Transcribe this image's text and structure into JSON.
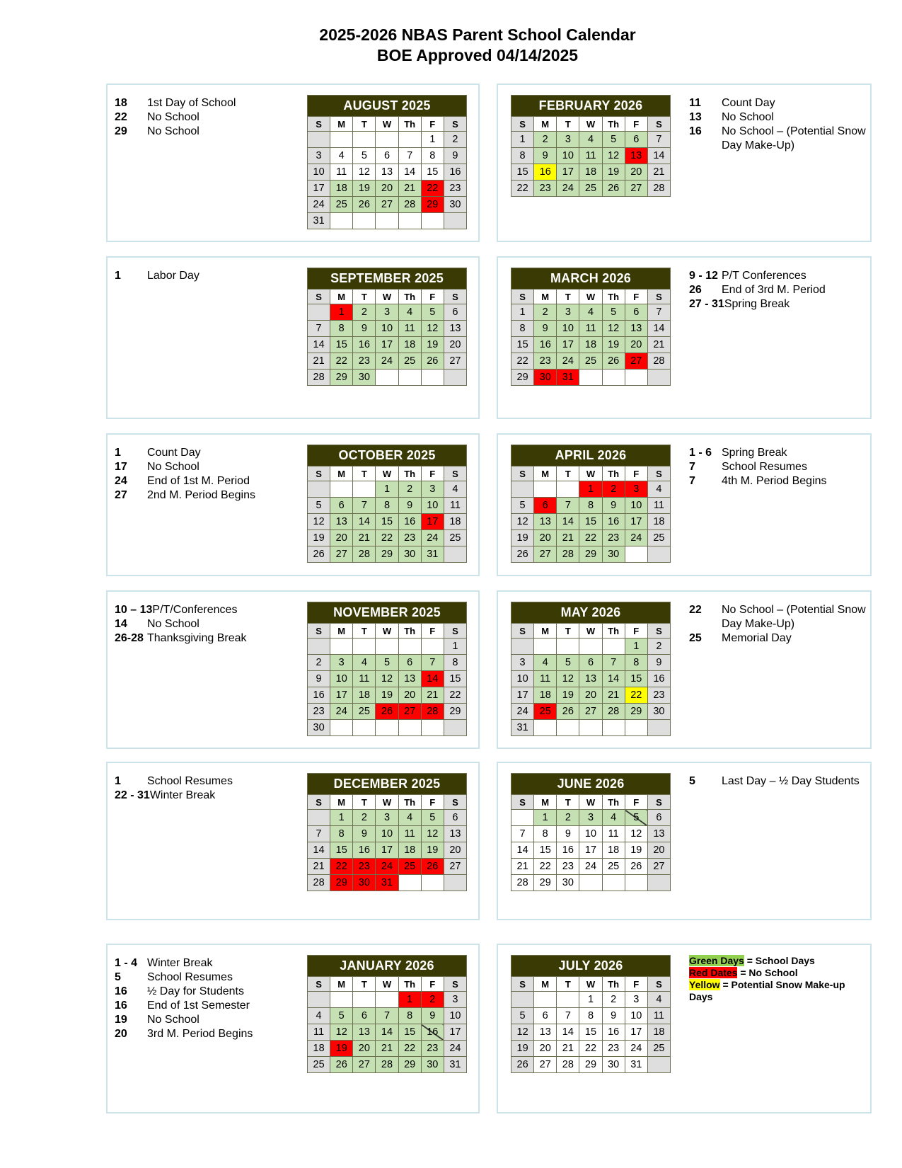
{
  "header": {
    "title": "2025-2026 NBAS Parent School Calendar",
    "subtitle": "BOE Approved  04/14/2025"
  },
  "colors": {
    "header_bg": "#3a3a05",
    "school_day": "#c5e0b3",
    "no_school": "#ff0000",
    "snow_makeup": "#ffff00",
    "weekend": "#dedede"
  },
  "weekday_labels": [
    "S",
    "M",
    "T",
    "W",
    "Th",
    "F",
    "S"
  ],
  "months": [
    {
      "id": "aug",
      "title": "AUGUST 2025",
      "side": "l",
      "start": 5,
      "days": 31,
      "green": [
        18,
        19,
        20,
        21,
        25,
        26,
        27,
        28
      ],
      "red": [
        22,
        29
      ],
      "yellow": [],
      "slash": [],
      "notes": [
        {
          "d": "18",
          "t": "1st Day of School"
        },
        {
          "d": "22",
          "t": "No School"
        },
        {
          "d": "29",
          "t": "No School"
        }
      ]
    },
    {
      "id": "feb",
      "title": "FEBRUARY 2026",
      "side": "r",
      "start": 0,
      "days": 28,
      "green": [
        2,
        3,
        4,
        5,
        6,
        9,
        10,
        11,
        12,
        17,
        18,
        19,
        20,
        23,
        24,
        25,
        26,
        27
      ],
      "red": [
        13
      ],
      "yellow": [
        16
      ],
      "slash": [],
      "notes": [
        {
          "d": "11",
          "t": "Count Day"
        },
        {
          "d": "13",
          "t": "No School"
        },
        {
          "d": "16",
          "t": "No School – (Potential Snow Day Make-Up)"
        }
      ]
    },
    {
      "id": "sep",
      "title": "SEPTEMBER 2025",
      "side": "l",
      "start": 1,
      "days": 30,
      "green": [
        2,
        3,
        4,
        5,
        8,
        9,
        10,
        11,
        12,
        15,
        16,
        17,
        18,
        19,
        22,
        23,
        24,
        25,
        26,
        29,
        30
      ],
      "red": [
        1
      ],
      "yellow": [],
      "slash": [],
      "notes": [
        {
          "d": "1",
          "t": "Labor Day"
        }
      ]
    },
    {
      "id": "mar",
      "title": "MARCH 2026",
      "side": "r",
      "start": 0,
      "days": 31,
      "green": [
        2,
        3,
        4,
        5,
        6,
        9,
        10,
        11,
        12,
        13,
        16,
        17,
        18,
        19,
        20,
        23,
        24,
        25,
        26
      ],
      "red": [
        27,
        30,
        31
      ],
      "yellow": [],
      "slash": [],
      "notes": [
        {
          "d": "9 - 12",
          "t": "P/T Conferences"
        },
        {
          "d": "26",
          "t": "End of 3rd M. Period"
        },
        {
          "d": "27 - 31",
          "t": "Spring Break"
        }
      ]
    },
    {
      "id": "oct",
      "title": "OCTOBER 2025",
      "side": "l",
      "start": 3,
      "days": 31,
      "green": [
        1,
        2,
        3,
        6,
        7,
        8,
        9,
        10,
        13,
        14,
        15,
        16,
        20,
        21,
        22,
        23,
        24,
        27,
        28,
        29,
        30,
        31
      ],
      "red": [
        17
      ],
      "yellow": [],
      "slash": [],
      "notes": [
        {
          "d": "1",
          "t": "Count Day"
        },
        {
          "d": "17",
          "t": "No School"
        },
        {
          "d": "24",
          "t": "End of 1st M. Period"
        },
        {
          "d": "27",
          "t": "2nd M. Period Begins"
        }
      ]
    },
    {
      "id": "apr",
      "title": "APRIL 2026",
      "side": "r",
      "start": 3,
      "days": 30,
      "green": [
        7,
        8,
        9,
        10,
        13,
        14,
        15,
        16,
        17,
        20,
        21,
        22,
        23,
        24,
        27,
        28,
        29,
        30
      ],
      "red": [
        1,
        2,
        3,
        6
      ],
      "yellow": [],
      "slash": [],
      "notes": [
        {
          "d": "1 - 6",
          "t": "Spring Break"
        },
        {
          "d": "7",
          "t": "School Resumes"
        },
        {
          "d": "7",
          "t": "4th M. Period Begins"
        }
      ]
    },
    {
      "id": "nov",
      "title": "NOVEMBER 2025",
      "side": "l",
      "start": 6,
      "days": 30,
      "green": [
        3,
        4,
        5,
        6,
        7,
        10,
        11,
        12,
        13,
        17,
        18,
        19,
        20,
        21,
        24,
        25
      ],
      "red": [
        14,
        26,
        27,
        28
      ],
      "yellow": [],
      "slash": [],
      "notes": [
        {
          "d": "10 – 13",
          "t": "P/T/Conferences"
        },
        {
          "d": "14",
          "t": "No School"
        },
        {
          "d": "26-28",
          "t": "Thanksgiving Break"
        }
      ]
    },
    {
      "id": "may",
      "title": "MAY 2026",
      "side": "r",
      "start": 5,
      "days": 31,
      "green": [
        1,
        4,
        5,
        6,
        7,
        8,
        11,
        12,
        13,
        14,
        15,
        18,
        19,
        20,
        21,
        26,
        27,
        28,
        29
      ],
      "red": [
        25
      ],
      "yellow": [
        22
      ],
      "slash": [],
      "notes": [
        {
          "d": "22",
          "t": "No School – (Potential Snow Day Make-Up)"
        },
        {
          "d": "25",
          "t": "Memorial Day"
        }
      ]
    },
    {
      "id": "dec",
      "title": "DECEMBER 2025",
      "side": "l",
      "start": 1,
      "days": 31,
      "green": [
        1,
        2,
        3,
        4,
        5,
        8,
        9,
        10,
        11,
        12,
        15,
        16,
        17,
        18,
        19
      ],
      "red": [
        22,
        23,
        24,
        25,
        26,
        29,
        30,
        31
      ],
      "yellow": [],
      "slash": [],
      "notes": [
        {
          "d": "1",
          "t": "School Resumes"
        },
        {
          "d": "22 - 31",
          "t": "Winter Break"
        }
      ]
    },
    {
      "id": "jun",
      "title": "JUNE 2026",
      "side": "r",
      "start": 1,
      "days": 30,
      "green": [
        1,
        2,
        3,
        4
      ],
      "red": [],
      "yellow": [],
      "slash": [
        5
      ],
      "white_sundays": true,
      "notes": [
        {
          "d": "5",
          "t": "Last Day – ½ Day Students"
        }
      ]
    },
    {
      "id": "jan",
      "title": "JANUARY 2026",
      "side": "l",
      "start": 4,
      "days": 31,
      "green": [
        5,
        6,
        7,
        8,
        9,
        12,
        13,
        14,
        15,
        20,
        21,
        22,
        23,
        26,
        27,
        28,
        29,
        30
      ],
      "red": [
        1,
        2,
        19
      ],
      "yellow": [],
      "slash": [
        16
      ],
      "notes": [
        {
          "d": "1 - 4",
          "t": "Winter Break"
        },
        {
          "d": "5",
          "t": "School Resumes"
        },
        {
          "d": "16",
          "t": "½ Day for Students"
        },
        {
          "d": "16",
          "t": "End of 1st Semester"
        },
        {
          "d": "19",
          "t": "No School"
        },
        {
          "d": "20",
          "t": "3rd M. Period Begins"
        }
      ]
    },
    {
      "id": "jul",
      "title": "JULY 2026",
      "side": "r",
      "start": 3,
      "days": 31,
      "green": [],
      "red": [],
      "yellow": [],
      "slash": [],
      "notes": []
    }
  ],
  "legend": {
    "green_label": "Green Days",
    "green_text": " = School Days",
    "red_label": "Red Dates",
    "red_text": " = No School",
    "yellow_label": "Yellow",
    "yellow_text": " = Potential Snow Make-up Days"
  }
}
